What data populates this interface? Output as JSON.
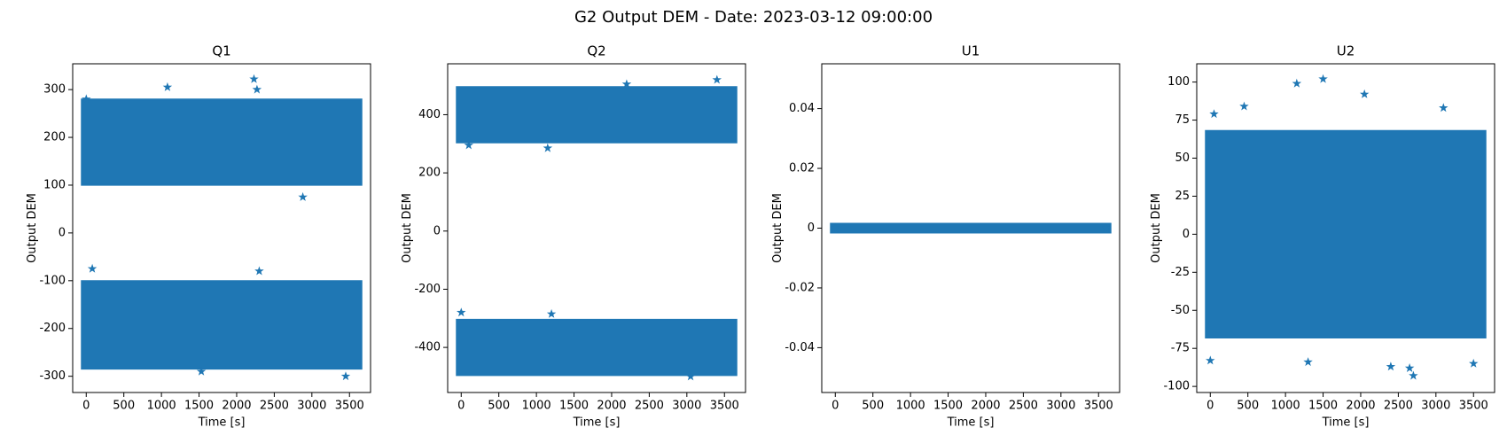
{
  "title": "G2 Output DEM - Date: 2023-03-12 09:00:00",
  "chart_data": [
    {
      "type": "scatter",
      "title": "Q1",
      "xlabel": "Time [s]",
      "ylabel": "Output DEM",
      "marker": "*",
      "color": "#1f77b4",
      "xlim": [
        -180,
        3780
      ],
      "ylim": [
        -334,
        354
      ],
      "xticks": [
        0,
        500,
        1000,
        1500,
        2000,
        2500,
        3000,
        3500
      ],
      "yticks": [
        -300,
        -200,
        -100,
        0,
        100,
        200,
        300
      ],
      "bands": [
        {
          "x": [
            0,
            3600
          ],
          "low": [
            110,
            110
          ],
          "high": [
            270,
            270
          ]
        },
        {
          "x": [
            0,
            3600
          ],
          "low": [
            -275,
            -275
          ],
          "high": [
            -110,
            -110
          ]
        }
      ],
      "points": {
        "x": [
          1080,
          2230,
          2880,
          2270,
          80,
          2300,
          3450,
          1530,
          0
        ],
        "y": [
          305,
          322,
          75,
          300,
          -75,
          -80,
          -300,
          -290,
          280
        ]
      }
    },
    {
      "type": "scatter",
      "title": "Q2",
      "xlabel": "Time [s]",
      "ylabel": "Output DEM",
      "marker": "*",
      "color": "#1f77b4",
      "xlim": [
        -180,
        3780
      ],
      "ylim": [
        -555,
        575
      ],
      "xticks": [
        0,
        500,
        1000,
        1500,
        2000,
        2500,
        3000,
        3500
      ],
      "yticks": [
        -400,
        -200,
        0,
        200,
        400
      ],
      "bands": [
        {
          "x": [
            0,
            3600
          ],
          "low": [
            320,
            320
          ],
          "high": [
            480,
            480
          ]
        },
        {
          "x": [
            0,
            3600
          ],
          "low": [
            -480,
            -480
          ],
          "high": [
            -320,
            -320
          ]
        }
      ],
      "points": {
        "x": [
          1150,
          3400,
          100,
          0,
          1200,
          3050,
          2200
        ],
        "y": [
          285,
          520,
          295,
          -280,
          -285,
          -500,
          505
        ]
      }
    },
    {
      "type": "scatter",
      "title": "U1",
      "xlabel": "Time [s]",
      "ylabel": "Output DEM",
      "marker": "*",
      "color": "#1f77b4",
      "xlim": [
        -180,
        3780
      ],
      "ylim": [
        -0.055,
        0.055
      ],
      "xticks": [
        0,
        500,
        1000,
        1500,
        2000,
        2500,
        3000,
        3500
      ],
      "yticks": [
        -0.04,
        -0.02,
        0.0,
        0.02,
        0.04
      ],
      "bands": [
        {
          "x": [
            0,
            3600
          ],
          "low": [
            0,
            0
          ],
          "high": [
            0,
            0
          ]
        }
      ],
      "points": {
        "x": [
          0,
          3600
        ],
        "y": [
          0,
          0
        ]
      }
    },
    {
      "type": "scatter",
      "title": "U2",
      "xlabel": "Time [s]",
      "ylabel": "Output DEM",
      "marker": "*",
      "color": "#1f77b4",
      "xlim": [
        -180,
        3780
      ],
      "ylim": [
        -104,
        112
      ],
      "xticks": [
        0,
        500,
        1000,
        1500,
        2000,
        2500,
        3000,
        3500
      ],
      "yticks": [
        -100,
        -75,
        -50,
        -25,
        0,
        25,
        50,
        75,
        100
      ],
      "bands": [
        {
          "x": [
            0,
            3600
          ],
          "low": [
            -65,
            -65
          ],
          "high": [
            65,
            65
          ]
        }
      ],
      "points": {
        "x": [
          1150,
          1500,
          2050,
          2700,
          2650,
          0,
          1300,
          3500,
          450,
          3100,
          2400,
          50
        ],
        "y": [
          99,
          102,
          92,
          -93,
          -88,
          -83,
          -84,
          -85,
          84,
          83,
          -87,
          79
        ]
      }
    }
  ]
}
